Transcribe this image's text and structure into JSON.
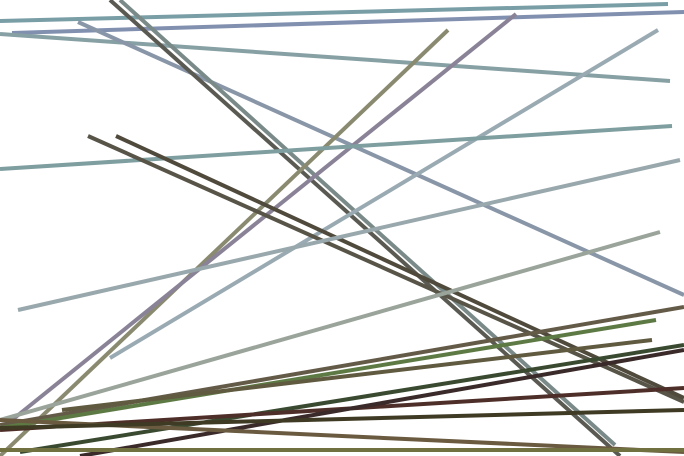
{
  "background": "#ffffff",
  "lines": [
    {
      "color": "#7a9ea6"
    },
    {
      "color": "#8290b0"
    },
    {
      "color": "#86a0a4"
    },
    {
      "color": "#8896a8"
    },
    {
      "color": "#5a5a52"
    },
    {
      "color": "#7a8a88"
    },
    {
      "color": "#8a8a70"
    },
    {
      "color": "#8a8296"
    },
    {
      "color": "#9aaab2"
    },
    {
      "color": "#7e9ea0"
    },
    {
      "color": "#585548"
    },
    {
      "color": "#504a3c"
    },
    {
      "color": "#98a8ac"
    },
    {
      "color": "#9aa49a"
    },
    {
      "color": "#645a48"
    },
    {
      "color": "#5e7a44"
    },
    {
      "color": "#605a40"
    },
    {
      "color": "#3a4a30"
    },
    {
      "color": "#4e2e28"
    },
    {
      "color": "#3a2a2a"
    },
    {
      "color": "#6a5a40"
    },
    {
      "color": "#707040"
    },
    {
      "color": "#3e3a24"
    }
  ]
}
